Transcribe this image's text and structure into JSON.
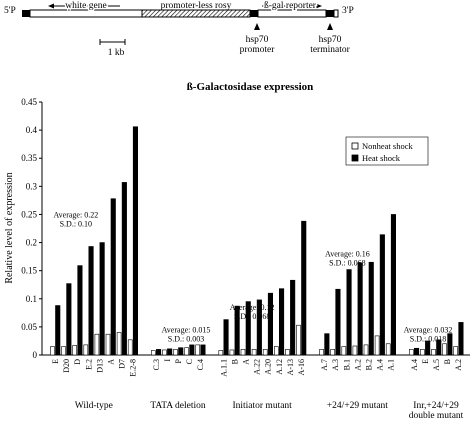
{
  "diagram": {
    "left_end": "5'P",
    "right_end": "3'P",
    "white_gene": "white gene",
    "rosy": "promoter-less rosy",
    "reporter": "ß-gal reporter",
    "scale": "1 kb",
    "promoter": [
      "hsp70",
      "promoter"
    ],
    "terminator": [
      "hsp70",
      "terminator"
    ]
  },
  "chart_data": {
    "type": "bar",
    "title": "ß-Galactosidase expression",
    "y_label": "Relative level of expression",
    "ylim": [
      0,
      0.45
    ],
    "yticks": [
      0,
      0.05,
      0.1,
      0.15,
      0.2,
      0.25,
      0.3,
      0.35,
      0.4,
      0.45
    ],
    "groups": [
      {
        "label": [
          "Wild-type"
        ],
        "categories": [
          "E",
          "D20",
          "D",
          "E.2",
          "D13",
          "A",
          "D7",
          "E.2-8"
        ],
        "annotation": [
          "Average: 0.22",
          "S.D.: 0.10"
        ]
      },
      {
        "label": [
          "TATA deletion"
        ],
        "categories": [
          "C.3",
          "I",
          "P",
          "C",
          "C.4"
        ],
        "annotation": [
          "Average: 0.015",
          "S.D.: 0.003"
        ]
      },
      {
        "label": [
          "Initiator mutant"
        ],
        "categories": [
          "A.1.1",
          "B",
          "A",
          "A.22",
          "A.20",
          "A.12",
          "A-13",
          "A-16"
        ],
        "annotation": [
          "Average: 0.12",
          "S.D.: 0.068"
        ]
      },
      {
        "label": [
          "+24/+29 mutant"
        ],
        "categories": [
          "A.7",
          "A.3",
          "B.1",
          "A.2",
          "B.2",
          "A.4",
          "A.1"
        ],
        "annotation": [
          "Average: 0.16",
          "S.D.: 0.068"
        ]
      },
      {
        "label": [
          "Inr,+24/+29",
          "double mutant"
        ],
        "categories": [
          "A.4",
          "E",
          "A.5",
          "B",
          "A.2"
        ],
        "annotation": [
          "Average: 0.032",
          "S.D.: 0.018"
        ]
      }
    ],
    "series": [
      {
        "name": "Nonheat shock",
        "color": "#ffffff",
        "values": [
          0.015,
          0.015,
          0.017,
          0.018,
          0.037,
          0.037,
          0.04,
          0.027,
          0.008,
          0.009,
          0.01,
          0.013,
          0.018,
          0.008,
          0.009,
          0.01,
          0.01,
          0.01,
          0.015,
          0.01,
          0.053,
          0.01,
          0.01,
          0.015,
          0.016,
          0.018,
          0.034,
          0.02,
          0.01,
          0.01,
          0.01,
          0.02,
          0.015
        ]
      },
      {
        "name": "Heat shock",
        "color": "#000000",
        "values": [
          0.088,
          0.127,
          0.159,
          0.193,
          0.2,
          0.278,
          0.307,
          0.406,
          0.01,
          0.011,
          0.013,
          0.018,
          0.018,
          0.063,
          0.087,
          0.095,
          0.098,
          0.11,
          0.118,
          0.133,
          0.238,
          0.038,
          0.117,
          0.152,
          0.164,
          0.165,
          0.214,
          0.25,
          0.012,
          0.025,
          0.027,
          0.038,
          0.058
        ]
      }
    ]
  }
}
